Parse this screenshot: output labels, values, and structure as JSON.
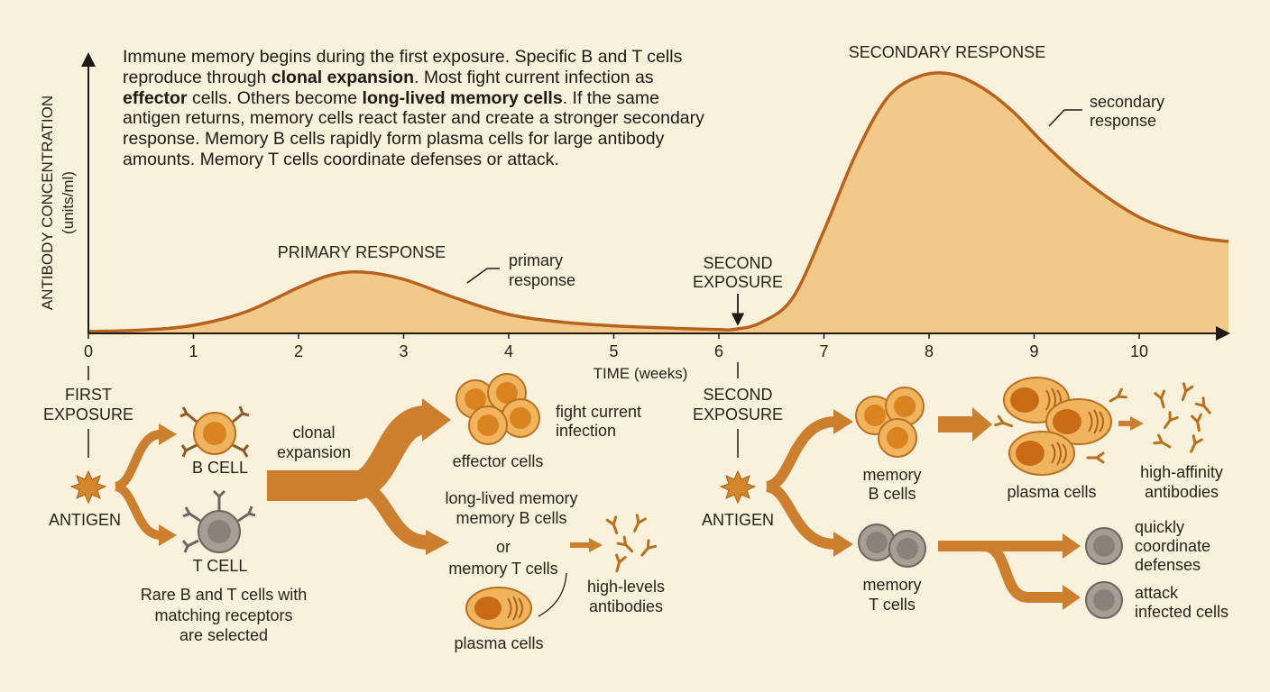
{
  "intro": {
    "s1": "Immune memory begins during the first exposure. Specific B and T cells reproduce through ",
    "b1": "clonal expansion",
    "s2": ". Most fight current infection as ",
    "b2": "effector",
    "s3": " cells. Others become ",
    "b3": "long-lived memory cells",
    "s4": ". If the same antigen returns, memory cells react faster and create a stronger secondary response. Memory B cells rapidly form plasma cells for large antibody amounts. Memory T cells coordinate defenses or attack."
  },
  "chart_data": {
    "type": "area",
    "ylabel_line1": "ANTIBODY CONCENTRATION",
    "ylabel_line2": "(units/ml)",
    "xlabel": "TIME (weeks)",
    "x_ticks": [
      "0",
      "1",
      "2",
      "3",
      "4",
      "5",
      "6",
      "7",
      "8",
      "9",
      "10"
    ],
    "xlim": [
      0,
      10.85
    ],
    "ylim": [
      0,
      1
    ],
    "x": [
      0,
      0.5,
      1,
      1.5,
      2,
      2.3,
      2.6,
      3,
      3.5,
      4,
      4.5,
      5,
      5.5,
      6,
      6.15,
      6.4,
      6.7,
      7,
      7.3,
      7.6,
      7.9,
      8.2,
      8.5,
      8.8,
      9.1,
      9.5,
      10,
      10.5,
      10.85
    ],
    "y": [
      0.007,
      0.012,
      0.03,
      0.08,
      0.17,
      0.215,
      0.227,
      0.2,
      0.13,
      0.07,
      0.042,
      0.028,
      0.02,
      0.014,
      0.015,
      0.04,
      0.13,
      0.38,
      0.66,
      0.87,
      0.95,
      0.96,
      0.91,
      0.82,
      0.7,
      0.56,
      0.43,
      0.36,
      0.34
    ],
    "annotations": {
      "primary_title": "PRIMARY RESPONSE",
      "primary_callout": [
        "primary",
        "response"
      ],
      "second_exposure": [
        "SECOND",
        "EXPOSURE"
      ],
      "secondary_title": "SECONDARY RESPONSE",
      "secondary_callout": [
        "secondary",
        "response"
      ]
    }
  },
  "flow": {
    "first_exposure": [
      "FIRST",
      "EXPOSURE"
    ],
    "antigen": "ANTIGEN",
    "b_cell": "B CELL",
    "t_cell": "T CELL",
    "selection_note": [
      "Rare B and T cells with",
      "matching receptors",
      "are selected"
    ],
    "clonal_expansion": [
      "clonal",
      "expansion"
    ],
    "effector_cells": "effector cells",
    "fight_infection": [
      "fight current",
      "infection"
    ],
    "memory_block": [
      "long-lived  memory",
      "memory B cells",
      "or",
      "memory T cells"
    ],
    "high_antibodies": [
      "high-levels",
      "antibodies"
    ],
    "plasma_cells_1": "plasma cells",
    "second_exposure": [
      "SECOND",
      "EXPOSURE"
    ],
    "antigen_2": "ANTIGEN",
    "memory_b": [
      "memory",
      "B cells"
    ],
    "plasma_cells_2": "plasma cells",
    "high_affinity": [
      "high-affinity",
      "antibodies"
    ],
    "memory_t": [
      "memory",
      "T cells"
    ],
    "coordinate": [
      "quickly",
      "coordinate",
      "defenses"
    ],
    "attack": [
      "attack",
      "infected cells"
    ]
  },
  "colors": {
    "background": "#faf1dc",
    "curve_fill": "#f3c98a",
    "curve_line": "#b8621f",
    "arrow": "#cc7f2e",
    "cell_outer": "#f0b05a",
    "cell_nucleus": "#d98420",
    "t_cell": "#9a8f84"
  }
}
